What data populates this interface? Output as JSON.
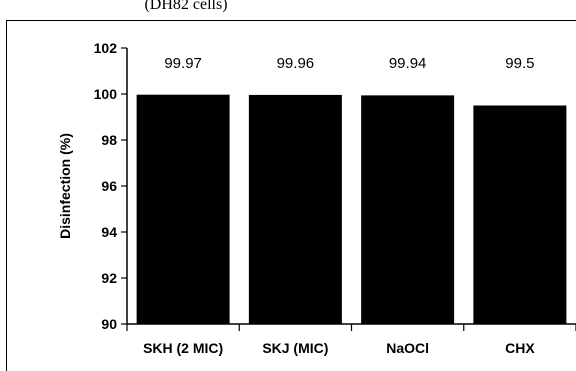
{
  "caption_fragment": "(DH82 cells)",
  "chart_data": {
    "type": "bar",
    "categories": [
      "SKH (2 MIC)",
      "SKJ (MIC)",
      "NaOCl",
      "CHX"
    ],
    "values": [
      99.97,
      99.96,
      99.94,
      99.5
    ],
    "data_labels": [
      "99.97",
      "99.96",
      "99.94",
      "99.5"
    ],
    "ylabel": "Disinfection (%)",
    "xlabel": "",
    "ylim": [
      90,
      102
    ],
    "yticks": [
      90,
      92,
      94,
      96,
      98,
      100,
      102
    ],
    "ytick_labels": [
      "90",
      "92",
      "94",
      "96",
      "98",
      "100",
      "102"
    ],
    "bar_color": "#000000",
    "grid": false,
    "legend": "none"
  }
}
